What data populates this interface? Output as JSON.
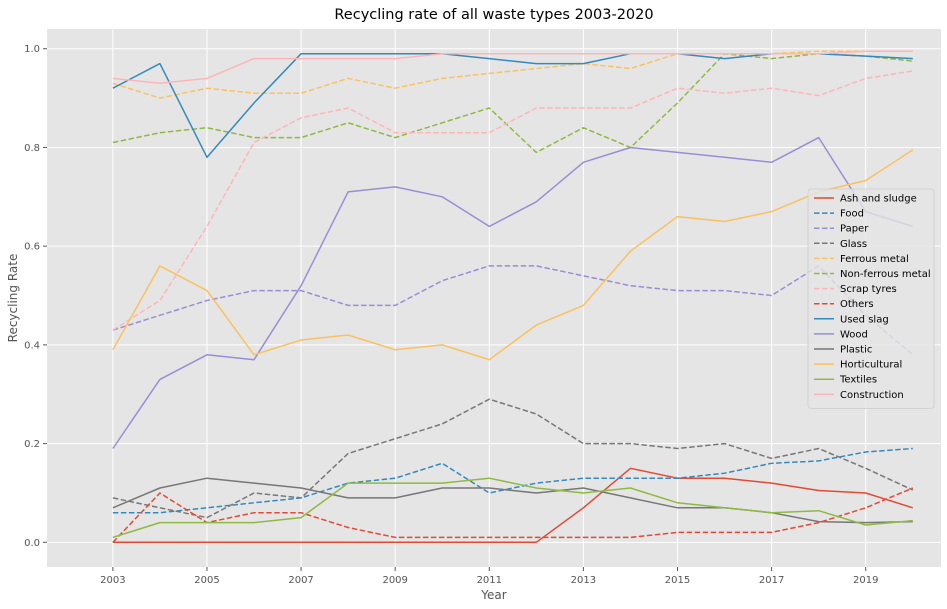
{
  "chart_data": {
    "type": "line",
    "title": "Recycling rate of all waste types 2003-2020",
    "xlabel": "Year",
    "ylabel": "Recycling Rate",
    "x": [
      2003,
      2004,
      2005,
      2006,
      2007,
      2008,
      2009,
      2010,
      2011,
      2012,
      2013,
      2014,
      2015,
      2016,
      2017,
      2018,
      2019,
      2020
    ],
    "xlim": [
      2001.6,
      2020.6
    ],
    "ylim": [
      -0.05,
      1.04
    ],
    "xticks": [
      "2003",
      "2005",
      "2007",
      "2009",
      "2011",
      "2013",
      "2015",
      "2017",
      "2019"
    ],
    "yticks": [
      "0.0",
      "0.2",
      "0.4",
      "0.6",
      "0.8",
      "1.0"
    ],
    "grid": true,
    "legend_position": "center-right",
    "series": [
      {
        "name": "Ash and sludge",
        "color": "#E24A33",
        "dash": "solid",
        "values": [
          0.0,
          0.0,
          0.0,
          0.0,
          0.0,
          0.0,
          0.0,
          0.0,
          0.0,
          0.0,
          0.07,
          0.15,
          0.13,
          0.13,
          0.12,
          0.105,
          0.1,
          0.07
        ]
      },
      {
        "name": "Food",
        "color": "#348ABD",
        "dash": "dashed",
        "values": [
          0.06,
          0.06,
          0.07,
          0.08,
          0.09,
          0.12,
          0.13,
          0.16,
          0.1,
          0.12,
          0.13,
          0.13,
          0.13,
          0.14,
          0.16,
          0.165,
          0.183,
          0.19
        ]
      },
      {
        "name": "Paper",
        "color": "#988ED5",
        "dash": "dashed",
        "values": [
          0.43,
          0.46,
          0.49,
          0.51,
          0.51,
          0.48,
          0.48,
          0.53,
          0.56,
          0.56,
          0.54,
          0.52,
          0.51,
          0.51,
          0.5,
          0.56,
          0.46,
          0.38
        ]
      },
      {
        "name": "Glass",
        "color": "#777777",
        "dash": "dashed",
        "values": [
          0.09,
          0.07,
          0.05,
          0.1,
          0.09,
          0.18,
          0.21,
          0.24,
          0.29,
          0.26,
          0.2,
          0.2,
          0.19,
          0.2,
          0.17,
          0.19,
          0.15,
          0.106
        ]
      },
      {
        "name": "Ferrous metal",
        "color": "#FBC15E",
        "dash": "dashed",
        "values": [
          0.93,
          0.9,
          0.92,
          0.91,
          0.91,
          0.94,
          0.92,
          0.94,
          0.95,
          0.96,
          0.97,
          0.96,
          0.99,
          0.99,
          0.99,
          0.995,
          0.995,
          0.995
        ]
      },
      {
        "name": "Non-ferrous metal",
        "color": "#8EBA42",
        "dash": "dashed",
        "values": [
          0.81,
          0.83,
          0.84,
          0.82,
          0.82,
          0.85,
          0.82,
          0.85,
          0.88,
          0.79,
          0.84,
          0.8,
          0.89,
          0.99,
          0.98,
          0.99,
          0.985,
          0.975
        ]
      },
      {
        "name": "Scrap tyres",
        "color": "#FFB5B8",
        "dash": "dashed",
        "values": [
          0.43,
          0.49,
          0.64,
          0.81,
          0.86,
          0.88,
          0.83,
          0.83,
          0.83,
          0.88,
          0.88,
          0.88,
          0.92,
          0.91,
          0.92,
          0.905,
          0.94,
          0.955
        ]
      },
      {
        "name": "Others",
        "color": "#E24A33",
        "dash": "dashed",
        "values": [
          0.0,
          0.1,
          0.04,
          0.06,
          0.06,
          0.03,
          0.01,
          0.01,
          0.01,
          0.01,
          0.01,
          0.01,
          0.02,
          0.02,
          0.02,
          0.04,
          0.07,
          0.11
        ]
      },
      {
        "name": "Used slag",
        "color": "#348ABD",
        "dash": "solid",
        "values": [
          0.92,
          0.97,
          0.78,
          0.89,
          0.99,
          0.99,
          0.99,
          0.99,
          0.98,
          0.97,
          0.97,
          0.99,
          0.99,
          0.98,
          0.99,
          0.99,
          0.985,
          0.98
        ]
      },
      {
        "name": "Wood",
        "color": "#988ED5",
        "dash": "solid",
        "values": [
          0.19,
          0.33,
          0.38,
          0.37,
          0.52,
          0.71,
          0.72,
          0.7,
          0.64,
          0.69,
          0.77,
          0.8,
          0.79,
          0.78,
          0.77,
          0.82,
          0.67,
          0.64
        ]
      },
      {
        "name": "Plastic",
        "color": "#777777",
        "dash": "solid",
        "values": [
          0.07,
          0.11,
          0.13,
          0.12,
          0.11,
          0.09,
          0.09,
          0.11,
          0.11,
          0.1,
          0.11,
          0.09,
          0.07,
          0.07,
          0.06,
          0.042,
          0.04,
          0.042
        ]
      },
      {
        "name": "Horticultural",
        "color": "#FBC15E",
        "dash": "solid",
        "values": [
          0.39,
          0.56,
          0.51,
          0.38,
          0.41,
          0.42,
          0.39,
          0.4,
          0.37,
          0.44,
          0.48,
          0.59,
          0.66,
          0.65,
          0.67,
          0.71,
          0.733,
          0.795
        ]
      },
      {
        "name": "Textiles",
        "color": "#8EBA42",
        "dash": "solid",
        "values": [
          0.01,
          0.04,
          0.04,
          0.04,
          0.05,
          0.12,
          0.12,
          0.12,
          0.13,
          0.11,
          0.1,
          0.11,
          0.08,
          0.07,
          0.06,
          0.064,
          0.035,
          0.044
        ]
      },
      {
        "name": "Construction",
        "color": "#FFB5B8",
        "dash": "solid",
        "values": [
          0.94,
          0.93,
          0.94,
          0.98,
          0.98,
          0.98,
          0.98,
          0.99,
          0.99,
          0.99,
          0.99,
          0.99,
          0.99,
          0.99,
          0.99,
          0.99,
          0.995,
          0.995
        ]
      }
    ]
  }
}
